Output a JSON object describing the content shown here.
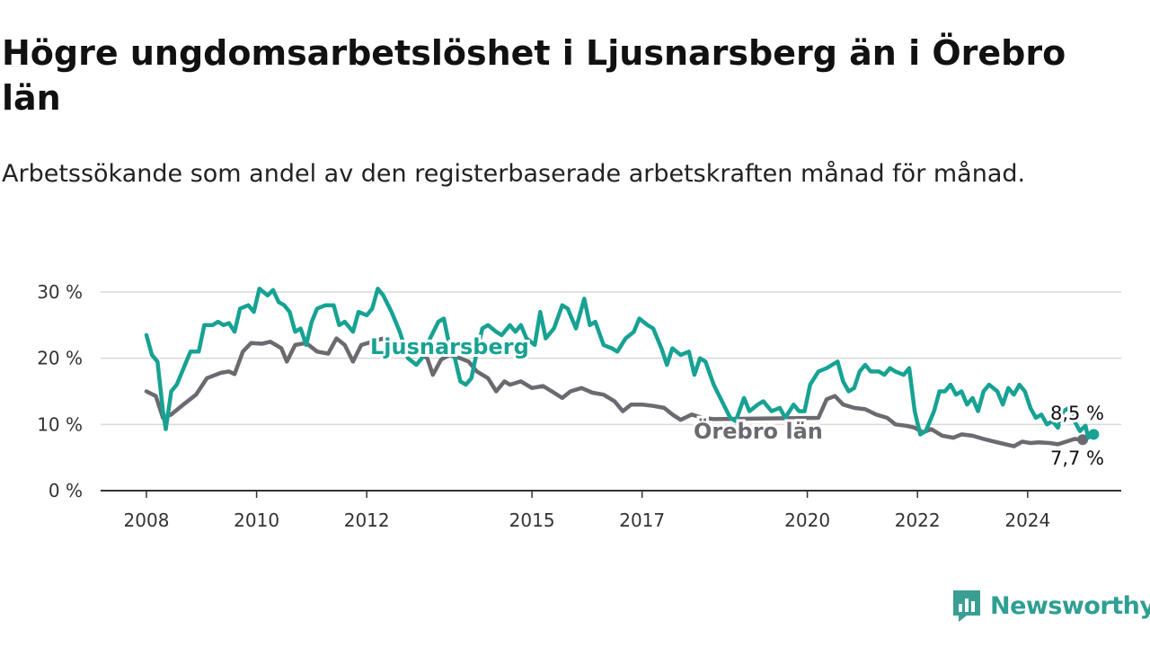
{
  "header": {
    "title": "Högre ungdomsarbetslöshet i Ljusnarsberg än i Örebro län",
    "subtitle": "Arbetssökande som andel av den registerbaserade arbetskraften månad för månad."
  },
  "brand": {
    "name": "Newsworthy",
    "icon": "newsworthy-logo-icon",
    "color": "#3a9e93"
  },
  "chart_data": {
    "type": "line",
    "xlabel": "",
    "ylabel": "",
    "xlim": [
      2008,
      2025.2
    ],
    "ylim": [
      0,
      30
    ],
    "grid": true,
    "y_ticks": [
      {
        "value": 0,
        "label": "0 %"
      },
      {
        "value": 10,
        "label": "10 %"
      },
      {
        "value": 20,
        "label": "20 %"
      },
      {
        "value": 30,
        "label": "30 %"
      }
    ],
    "x_ticks": [
      {
        "value": 2008,
        "label": "2008"
      },
      {
        "value": 2010,
        "label": "2010"
      },
      {
        "value": 2012,
        "label": "2012"
      },
      {
        "value": 2015,
        "label": "2015"
      },
      {
        "value": 2017,
        "label": "2017"
      },
      {
        "value": 2020,
        "label": "2020"
      },
      {
        "value": 2022,
        "label": "2022"
      },
      {
        "value": 2024,
        "label": "2024"
      }
    ],
    "series": [
      {
        "name": "Örebro län",
        "color": "#6b6a70",
        "end_label": "7,7 %",
        "points": [
          [
            2008.0,
            15.0
          ],
          [
            2008.17,
            14.3
          ],
          [
            2008.3,
            11.0
          ],
          [
            2008.45,
            11.5
          ],
          [
            2008.7,
            13.2
          ],
          [
            2008.9,
            14.5
          ],
          [
            2009.1,
            17.0
          ],
          [
            2009.35,
            17.8
          ],
          [
            2009.5,
            18.0
          ],
          [
            2009.6,
            17.6
          ],
          [
            2009.75,
            21.0
          ],
          [
            2009.9,
            22.3
          ],
          [
            2010.1,
            22.2
          ],
          [
            2010.25,
            22.5
          ],
          [
            2010.45,
            21.5
          ],
          [
            2010.55,
            19.5
          ],
          [
            2010.7,
            22.0
          ],
          [
            2010.9,
            22.3
          ],
          [
            2011.1,
            21.0
          ],
          [
            2011.3,
            20.7
          ],
          [
            2011.45,
            23.0
          ],
          [
            2011.6,
            22.0
          ],
          [
            2011.75,
            19.5
          ],
          [
            2011.9,
            22.0
          ],
          [
            2012.1,
            22.5
          ],
          [
            2012.3,
            23.0
          ],
          [
            2012.45,
            21.5
          ],
          [
            2012.65,
            21.0
          ],
          [
            2012.9,
            21.0
          ],
          [
            2013.1,
            20.0
          ],
          [
            2013.2,
            17.5
          ],
          [
            2013.35,
            19.8
          ],
          [
            2013.5,
            20.5
          ],
          [
            2013.7,
            20.0
          ],
          [
            2013.85,
            19.5
          ],
          [
            2014.0,
            18.0
          ],
          [
            2014.2,
            17.0
          ],
          [
            2014.35,
            15.0
          ],
          [
            2014.5,
            16.5
          ],
          [
            2014.6,
            16.0
          ],
          [
            2014.8,
            16.5
          ],
          [
            2015.0,
            15.5
          ],
          [
            2015.2,
            15.8
          ],
          [
            2015.4,
            14.8
          ],
          [
            2015.55,
            14.0
          ],
          [
            2015.7,
            15.0
          ],
          [
            2015.9,
            15.5
          ],
          [
            2016.1,
            14.8
          ],
          [
            2016.3,
            14.5
          ],
          [
            2016.5,
            13.5
          ],
          [
            2016.65,
            12.0
          ],
          [
            2016.8,
            13.0
          ],
          [
            2017.0,
            13.0
          ],
          [
            2017.2,
            12.8
          ],
          [
            2017.4,
            12.5
          ],
          [
            2017.55,
            11.5
          ],
          [
            2017.7,
            10.7
          ],
          [
            2017.9,
            11.5
          ],
          [
            2018.1,
            11.0
          ],
          [
            2018.3,
            10.8
          ],
          [
            2020.2,
            11.0
          ],
          [
            2020.35,
            13.8
          ],
          [
            2020.5,
            14.3
          ],
          [
            2020.65,
            13.0
          ],
          [
            2020.85,
            12.5
          ],
          [
            2021.05,
            12.3
          ],
          [
            2021.25,
            11.5
          ],
          [
            2021.45,
            11.0
          ],
          [
            2021.6,
            10.0
          ],
          [
            2021.8,
            9.8
          ],
          [
            2021.95,
            9.5
          ],
          [
            2022.1,
            8.8
          ],
          [
            2022.25,
            9.3
          ],
          [
            2022.45,
            8.3
          ],
          [
            2022.65,
            8.0
          ],
          [
            2022.8,
            8.5
          ],
          [
            2023.0,
            8.3
          ],
          [
            2023.2,
            7.8
          ],
          [
            2023.35,
            7.5
          ],
          [
            2023.5,
            7.2
          ],
          [
            2023.6,
            7.0
          ],
          [
            2023.75,
            6.7
          ],
          [
            2023.9,
            7.4
          ],
          [
            2024.05,
            7.2
          ],
          [
            2024.2,
            7.3
          ],
          [
            2024.4,
            7.2
          ],
          [
            2024.55,
            7.0
          ],
          [
            2024.7,
            7.4
          ],
          [
            2024.85,
            7.8
          ],
          [
            2025.0,
            7.7
          ]
        ]
      },
      {
        "name": "Ljusnarsberg",
        "color": "#17a293",
        "end_label": "8,5 %",
        "points": [
          [
            2008.0,
            23.5
          ],
          [
            2008.1,
            20.5
          ],
          [
            2008.2,
            19.5
          ],
          [
            2008.3,
            12.0
          ],
          [
            2008.35,
            9.3
          ],
          [
            2008.45,
            15.0
          ],
          [
            2008.55,
            16.0
          ],
          [
            2008.7,
            19.0
          ],
          [
            2008.8,
            21.0
          ],
          [
            2008.95,
            21.0
          ],
          [
            2009.05,
            25.0
          ],
          [
            2009.2,
            25.0
          ],
          [
            2009.3,
            25.5
          ],
          [
            2009.4,
            25.0
          ],
          [
            2009.5,
            25.3
          ],
          [
            2009.6,
            24.0
          ],
          [
            2009.7,
            27.5
          ],
          [
            2009.85,
            28.0
          ],
          [
            2009.95,
            27.0
          ],
          [
            2010.05,
            30.5
          ],
          [
            2010.2,
            29.5
          ],
          [
            2010.3,
            30.3
          ],
          [
            2010.4,
            28.5
          ],
          [
            2010.5,
            28.0
          ],
          [
            2010.6,
            27.0
          ],
          [
            2010.7,
            24.0
          ],
          [
            2010.8,
            24.5
          ],
          [
            2010.9,
            22.0
          ],
          [
            2011.0,
            25.5
          ],
          [
            2011.1,
            27.5
          ],
          [
            2011.25,
            28.0
          ],
          [
            2011.4,
            28.0
          ],
          [
            2011.5,
            25.0
          ],
          [
            2011.6,
            25.5
          ],
          [
            2011.75,
            24.0
          ],
          [
            2011.85,
            27.0
          ],
          [
            2012.0,
            26.5
          ],
          [
            2012.1,
            27.5
          ],
          [
            2012.2,
            30.5
          ],
          [
            2012.3,
            29.5
          ],
          [
            2012.45,
            27.0
          ],
          [
            2012.6,
            24.0
          ],
          [
            2012.75,
            20.0
          ],
          [
            2012.9,
            19.0
          ],
          [
            2013.0,
            20.0
          ],
          [
            2013.15,
            23.0
          ],
          [
            2013.3,
            25.5
          ],
          [
            2013.4,
            26.0
          ],
          [
            2013.5,
            22.0
          ],
          [
            2013.6,
            20.0
          ],
          [
            2013.7,
            16.5
          ],
          [
            2013.8,
            16.0
          ],
          [
            2013.9,
            17.0
          ],
          [
            2014.0,
            21.0
          ],
          [
            2014.1,
            24.5
          ],
          [
            2014.2,
            25.0
          ],
          [
            2014.35,
            24.0
          ],
          [
            2014.45,
            23.5
          ],
          [
            2014.6,
            25.0
          ],
          [
            2014.7,
            24.0
          ],
          [
            2014.8,
            25.0
          ],
          [
            2014.9,
            23.0
          ],
          [
            2015.05,
            22.0
          ],
          [
            2015.15,
            27.0
          ],
          [
            2015.25,
            23.0
          ],
          [
            2015.4,
            24.5
          ],
          [
            2015.55,
            28.0
          ],
          [
            2015.65,
            27.5
          ],
          [
            2015.8,
            24.5
          ],
          [
            2015.95,
            29.0
          ],
          [
            2016.05,
            25.0
          ],
          [
            2016.15,
            25.5
          ],
          [
            2016.3,
            22.0
          ],
          [
            2016.45,
            21.5
          ],
          [
            2016.55,
            21.0
          ],
          [
            2016.7,
            23.0
          ],
          [
            2016.85,
            24.0
          ],
          [
            2016.95,
            26.0
          ],
          [
            2017.1,
            25.0
          ],
          [
            2017.2,
            24.5
          ],
          [
            2017.35,
            21.5
          ],
          [
            2017.45,
            19.0
          ],
          [
            2017.55,
            21.5
          ],
          [
            2017.7,
            20.5
          ],
          [
            2017.85,
            21.0
          ],
          [
            2017.95,
            17.5
          ],
          [
            2018.05,
            20.0
          ],
          [
            2018.15,
            19.5
          ],
          [
            2018.3,
            16.0
          ],
          [
            2018.45,
            13.5
          ],
          [
            2018.6,
            11.0
          ],
          [
            2018.7,
            10.5
          ],
          [
            2018.85,
            14.0
          ],
          [
            2018.95,
            12.0
          ],
          [
            2019.1,
            13.0
          ],
          [
            2019.2,
            13.5
          ],
          [
            2019.35,
            12.0
          ],
          [
            2019.5,
            12.5
          ],
          [
            2019.6,
            11.0
          ],
          [
            2019.75,
            13.0
          ],
          [
            2019.85,
            12.0
          ],
          [
            2019.95,
            12.0
          ],
          [
            2020.05,
            16.0
          ],
          [
            2020.2,
            18.0
          ],
          [
            2020.35,
            18.5
          ],
          [
            2020.45,
            19.0
          ],
          [
            2020.55,
            19.5
          ],
          [
            2020.65,
            16.5
          ],
          [
            2020.75,
            15.0
          ],
          [
            2020.85,
            15.5
          ],
          [
            2020.95,
            18.0
          ],
          [
            2021.05,
            19.0
          ],
          [
            2021.15,
            18.0
          ],
          [
            2021.3,
            18.0
          ],
          [
            2021.4,
            17.5
          ],
          [
            2021.5,
            18.5
          ],
          [
            2021.6,
            18.0
          ],
          [
            2021.75,
            17.5
          ],
          [
            2021.85,
            18.5
          ],
          [
            2021.95,
            12.0
          ],
          [
            2022.05,
            8.5
          ],
          [
            2022.15,
            9.0
          ],
          [
            2022.3,
            12.0
          ],
          [
            2022.4,
            15.0
          ],
          [
            2022.5,
            15.0
          ],
          [
            2022.6,
            16.0
          ],
          [
            2022.7,
            14.5
          ],
          [
            2022.8,
            15.0
          ],
          [
            2022.9,
            13.0
          ],
          [
            2023.0,
            14.0
          ],
          [
            2023.1,
            12.0
          ],
          [
            2023.2,
            15.0
          ],
          [
            2023.3,
            16.0
          ],
          [
            2023.45,
            15.0
          ],
          [
            2023.55,
            13.0
          ],
          [
            2023.65,
            15.5
          ],
          [
            2023.75,
            14.5
          ],
          [
            2023.85,
            16.0
          ],
          [
            2023.95,
            15.0
          ],
          [
            2024.05,
            12.5
          ],
          [
            2024.15,
            11.0
          ],
          [
            2024.25,
            11.5
          ],
          [
            2024.35,
            10.0
          ],
          [
            2024.45,
            10.5
          ],
          [
            2024.55,
            9.5
          ],
          [
            2024.65,
            12.0
          ],
          [
            2024.75,
            12.5
          ],
          [
            2024.85,
            10.5
          ],
          [
            2024.95,
            9.0
          ],
          [
            2025.05,
            9.8
          ],
          [
            2025.1,
            8.0
          ],
          [
            2025.2,
            8.5
          ]
        ]
      }
    ]
  }
}
